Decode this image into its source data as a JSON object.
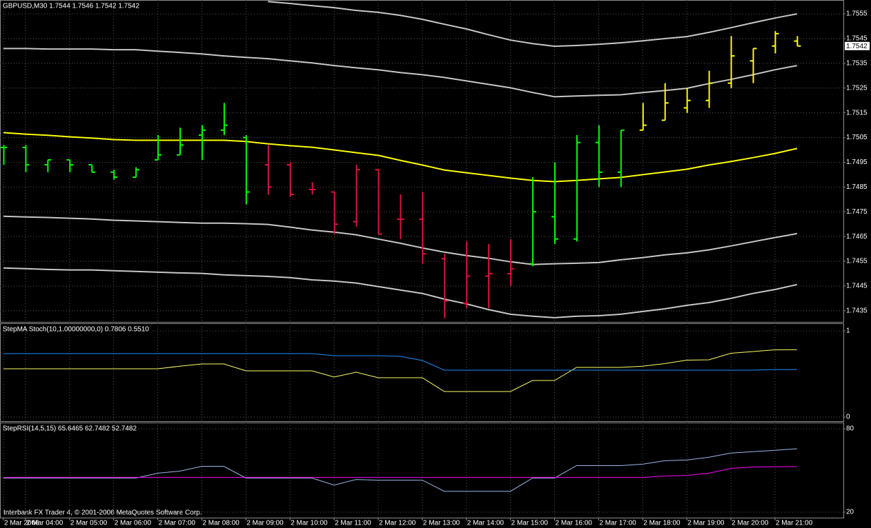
{
  "chart_data": [
    {
      "type": "ohlc",
      "title": "GBPUSD,M30  1.7544 1.7546 1.7542 1.7542",
      "categories": [
        "2 Mar 2006",
        "2 Mar 04:00",
        null,
        "2 Mar 05:00",
        null,
        "2 Mar 06:00",
        null,
        "2 Mar 07:00",
        null,
        "2 Mar 08:00",
        null,
        "2 Mar 09:00",
        null,
        "2 Mar 10:00",
        null,
        "2 Mar 11:00",
        null,
        "2 Mar 12:00",
        null,
        "2 Mar 13:00",
        null,
        "2 Mar 14:00",
        null,
        "2 Mar 15:00",
        null,
        "2 Mar 16:00",
        null,
        "2 Mar 17:00",
        null,
        "2 Mar 18:00",
        null,
        "2 Mar 19:00",
        null,
        "2 Mar 20:00",
        null,
        "2 Mar 21:00",
        null
      ],
      "open": [
        1.7501,
        1.7501,
        1.7494,
        1.7496,
        1.7494,
        1.7491,
        1.7489,
        1.7496,
        1.7498,
        1.7506,
        1.7508,
        1.7505,
        1.7494,
        1.7494,
        1.7484,
        1.7483,
        1.7471,
        1.7492,
        1.7472,
        1.7472,
        1.7456,
        1.7438,
        1.7449,
        1.745,
        1.7454,
        1.7473,
        1.7464,
        1.7503,
        1.7491,
        1.7508,
        1.7512,
        1.7517,
        1.752,
        1.7527,
        1.7536,
        1.7542,
        1.7544
      ],
      "high": [
        1.7502,
        1.7502,
        1.7496,
        1.7496,
        1.7494,
        1.7492,
        1.7493,
        1.7506,
        1.7509,
        1.751,
        1.7519,
        1.7506,
        1.7502,
        1.7495,
        1.7487,
        1.7483,
        1.7494,
        1.7492,
        1.7482,
        1.7483,
        1.7458,
        1.7463,
        1.7462,
        1.7464,
        1.7489,
        1.7495,
        1.7506,
        1.751,
        1.7508,
        1.7519,
        1.7527,
        1.7525,
        1.7532,
        1.7546,
        1.7541,
        1.7548,
        1.7546
      ],
      "low": [
        1.7494,
        1.7491,
        1.7491,
        1.7491,
        1.7491,
        1.7488,
        1.7489,
        1.7496,
        1.7498,
        1.7496,
        1.7506,
        1.7478,
        1.7482,
        1.7481,
        1.7482,
        1.7466,
        1.7469,
        1.7466,
        1.7464,
        1.7454,
        1.7432,
        1.7436,
        1.7436,
        1.7445,
        1.7453,
        1.7462,
        1.7463,
        1.7485,
        1.7485,
        1.7508,
        1.7512,
        1.7515,
        1.7517,
        1.7525,
        1.7527,
        1.7539,
        1.7542
      ],
      "close": [
        1.7501,
        1.7494,
        1.7496,
        1.7494,
        1.7491,
        1.7489,
        1.7492,
        1.7498,
        1.7502,
        1.7508,
        1.751,
        1.7483,
        1.7485,
        1.7482,
        1.7484,
        1.747,
        1.7492,
        1.7466,
        1.7472,
        1.7458,
        1.7439,
        1.7449,
        1.745,
        1.7452,
        1.7475,
        1.7464,
        1.7503,
        1.7491,
        1.7508,
        1.751,
        1.7519,
        1.752,
        1.7527,
        1.7538,
        1.7541,
        1.7547,
        1.7542
      ],
      "bar_colors": [
        "#00ff00",
        "#00ff00",
        "#00ff00",
        "#00ff00",
        "#00ff00",
        "#00ff00",
        "#00ff00",
        "#00ff00",
        "#00ff00",
        "#00ff00",
        "#00ff00",
        "#00ff00",
        "#dc143c",
        "#dc143c",
        "#dc143c",
        "#dc143c",
        "#dc143c",
        "#dc143c",
        "#dc143c",
        "#dc143c",
        "#dc143c",
        "#dc143c",
        "#dc143c",
        "#dc143c",
        "#00ff00",
        "#00ff00",
        "#00ff00",
        "#00ff00",
        "#00ff00",
        "#ffff00",
        "#ffff00",
        "#ffff00",
        "#ffff00",
        "#ffff00",
        "#ffff00",
        "#ffff00",
        "#ffff00"
      ],
      "series": [
        {
          "color": "#c8c8c8",
          "values": [
            null,
            null,
            null,
            null,
            null,
            null,
            null,
            null,
            null,
            null,
            null,
            null,
            1.756,
            1.75592,
            1.75583,
            1.75575,
            1.75564,
            1.75556,
            1.75544,
            1.75528,
            1.75508,
            1.75489,
            1.75466,
            1.75444,
            1.7543,
            1.75419,
            1.75422,
            1.75427,
            1.75433,
            1.75441,
            1.7545,
            1.75458,
            1.75475,
            1.75494,
            1.75514,
            1.75533,
            1.7555
          ]
        },
        {
          "color": "#c8c8c8",
          "values": [
            1.7541,
            1.7541,
            1.75408,
            1.75408,
            1.75408,
            1.75405,
            1.75405,
            1.75399,
            1.75394,
            1.75388,
            1.7538,
            1.75374,
            1.75369,
            1.7536,
            1.75352,
            1.75341,
            1.75332,
            1.75324,
            1.75313,
            1.75304,
            1.75293,
            1.75279,
            1.75265,
            1.75251,
            1.75232,
            1.75215,
            1.75218,
            1.75221,
            1.75223,
            1.75232,
            1.7524,
            1.75249,
            1.75268,
            1.75285,
            1.75304,
            1.75324,
            1.75341
          ]
        },
        {
          "color": "#ffff00",
          "values": [
            1.7507,
            1.75064,
            1.75059,
            1.75053,
            1.75048,
            1.75042,
            1.75039,
            1.75039,
            1.75039,
            1.75039,
            1.75039,
            1.75034,
            1.75025,
            1.75017,
            1.75011,
            1.75,
            1.74989,
            1.74978,
            1.74958,
            1.74939,
            1.74919,
            1.74908,
            1.74897,
            1.74886,
            1.74877,
            1.74872,
            1.74877,
            1.74883,
            1.74889,
            1.749,
            1.74911,
            1.74922,
            1.74939,
            1.74953,
            1.74969,
            1.74986,
            1.75006
          ]
        },
        {
          "color": "#c8c8c8",
          "values": [
            1.74732,
            1.74729,
            1.74727,
            1.74724,
            1.74721,
            1.74716,
            1.74713,
            1.7471,
            1.74707,
            1.74704,
            1.74704,
            1.74702,
            1.74699,
            1.74688,
            1.74676,
            1.74668,
            1.74657,
            1.7464,
            1.74623,
            1.74604,
            1.74587,
            1.74573,
            1.74562,
            1.74548,
            1.74537,
            1.7454,
            1.74542,
            1.74545,
            1.74556,
            1.74565,
            1.74576,
            1.74584,
            1.74596,
            1.74612,
            1.74629,
            1.74646,
            1.74662
          ]
        },
        {
          "color": "#c8c8c8",
          "values": [
            1.74523,
            1.7452,
            1.74517,
            1.74515,
            1.74515,
            1.74512,
            1.74509,
            1.74506,
            1.74503,
            1.74501,
            1.74495,
            1.74492,
            1.74489,
            1.74484,
            1.74475,
            1.7447,
            1.74462,
            1.74448,
            1.74434,
            1.7442,
            1.74397,
            1.74378,
            1.74355,
            1.74336,
            1.74328,
            1.74322,
            1.74328,
            1.7433,
            1.74336,
            1.74347,
            1.74358,
            1.74372,
            1.74383,
            1.744,
            1.7442,
            1.74436,
            1.74456
          ]
        }
      ],
      "ylim": [
        1.74305,
        1.75606
      ],
      "yticks": [
        1.7555,
        1.7545,
        1.7535,
        1.7525,
        1.7515,
        1.7505,
        1.7495,
        1.7485,
        1.7475,
        1.7465,
        1.7455,
        1.7445,
        1.7435
      ],
      "grid": true,
      "current_price": 1.7542
    },
    {
      "type": "line",
      "title": "StepMA Stoch(10,1.00000000,0) 0.7806 0.5510",
      "series": [
        {
          "color": "#ffff66",
          "values": [
            0.56,
            0.56,
            0.56,
            0.56,
            0.56,
            0.56,
            0.56,
            0.56,
            0.59,
            0.616,
            0.616,
            0.536,
            0.536,
            0.536,
            0.536,
            0.464,
            0.52,
            0.456,
            0.456,
            0.456,
            0.296,
            0.296,
            0.296,
            0.296,
            0.424,
            0.424,
            0.576,
            0.576,
            0.576,
            0.59,
            0.62,
            0.66,
            0.664,
            0.74,
            0.76,
            0.78,
            0.7806
          ]
        },
        {
          "color": "#1e90ff",
          "values": [
            0.736,
            0.736,
            0.736,
            0.736,
            0.736,
            0.736,
            0.736,
            0.736,
            0.736,
            0.736,
            0.736,
            0.736,
            0.736,
            0.736,
            0.736,
            0.712,
            0.712,
            0.712,
            0.704,
            0.656,
            0.544,
            0.544,
            0.544,
            0.544,
            0.544,
            0.544,
            0.544,
            0.544,
            0.544,
            0.544,
            0.544,
            0.544,
            0.544,
            0.544,
            0.544,
            0.551,
            0.551
          ]
        }
      ],
      "ylim": [
        -0.048,
        1.088
      ],
      "yticks": [
        0,
        1
      ],
      "grid": true
    },
    {
      "type": "line",
      "title": "StepRSI(14,5,15) 65.6465 62.7482 52.7482",
      "series": [
        {
          "color": "#9ab8e8",
          "values": [
            44.5,
            44.5,
            44.5,
            44.5,
            44.5,
            44.5,
            44.5,
            48,
            49.5,
            53,
            53,
            44.5,
            44.5,
            44.5,
            44.5,
            39.5,
            43.5,
            43,
            43,
            43,
            35,
            35,
            35,
            35,
            44.5,
            44.5,
            53.5,
            53.5,
            53.5,
            54.5,
            57,
            57.5,
            59.5,
            62.5,
            63.5,
            64.5,
            65.6465
          ]
        },
        {
          "color": "#ff00ff",
          "values": [
            45,
            45,
            45,
            45,
            45,
            45,
            45,
            45,
            45,
            45,
            45,
            45,
            45,
            45,
            45,
            45,
            45,
            45,
            45,
            45,
            45,
            45,
            45,
            45,
            45,
            45,
            45,
            45,
            45,
            45,
            46,
            46.5,
            48,
            51.5,
            52.5,
            52.7,
            52.7482
          ]
        }
      ],
      "ylim": [
        16,
        84.5
      ],
      "yticks": [
        20,
        80
      ],
      "grid": true
    }
  ],
  "footer": "Interbank FX Trader 4, © 2001-2006 MetaQuotes Software Corp."
}
